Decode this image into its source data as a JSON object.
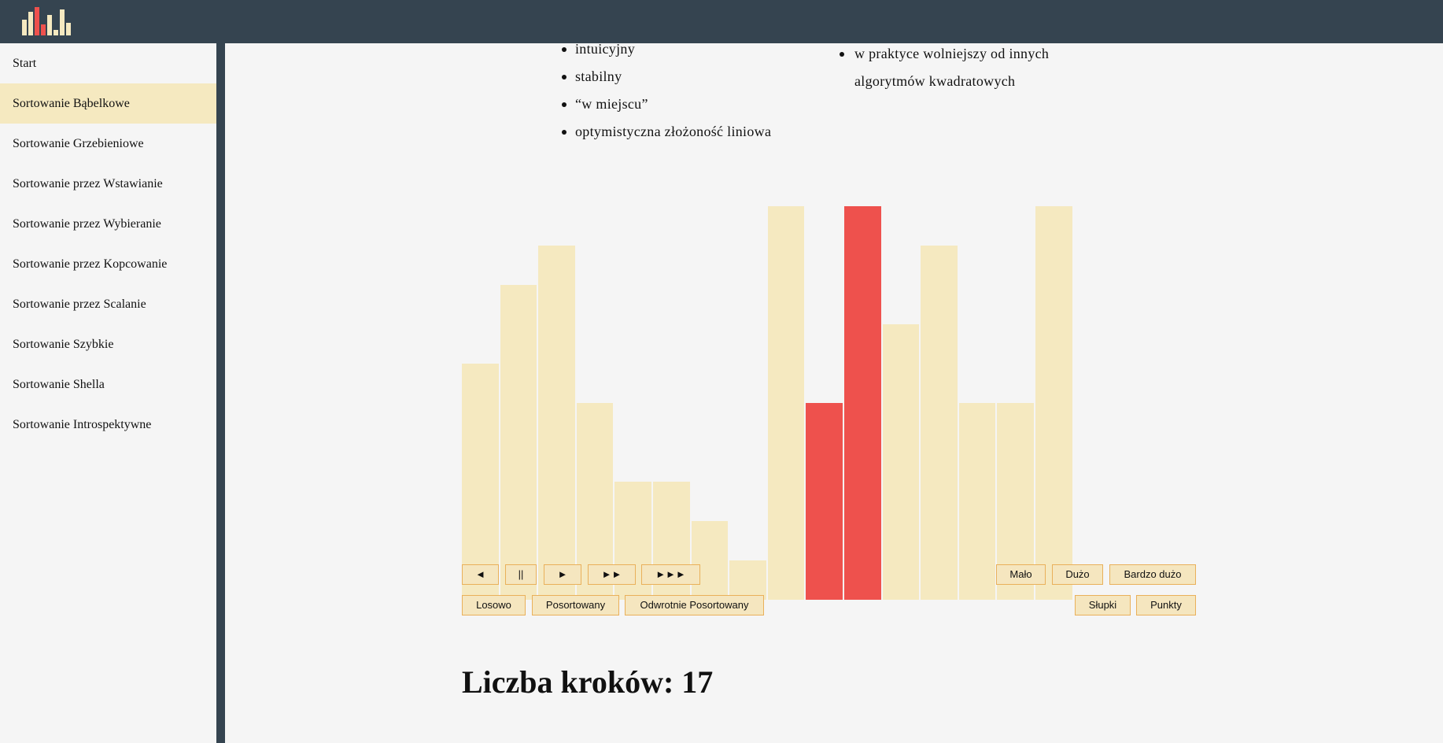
{
  "header": {
    "logo_icon": "bar-chart-logo-icon",
    "logo_colors": [
      "#f5e9c0",
      "#ee514d"
    ]
  },
  "sidebar": {
    "items": [
      {
        "label": "Start",
        "active": false
      },
      {
        "label": "Sortowanie Bąbelkowe",
        "active": true
      },
      {
        "label": "Sortowanie Grzebieniowe",
        "active": false
      },
      {
        "label": "Sortowanie przez Wstawianie",
        "active": false
      },
      {
        "label": "Sortowanie przez Wybieranie",
        "active": false
      },
      {
        "label": "Sortowanie przez Kopcowanie",
        "active": false
      },
      {
        "label": "Sortowanie przez Scalanie",
        "active": false
      },
      {
        "label": "Sortowanie Szybkie",
        "active": false
      },
      {
        "label": "Sortowanie Shella",
        "active": false
      },
      {
        "label": "Sortowanie Introspektywne",
        "active": false
      }
    ]
  },
  "content": {
    "pros": [
      "intuicyjny",
      "stabilny",
      "“w miejscu”",
      "optymistyczna złożoność liniowa"
    ],
    "cons_line1": "w praktyce wolniejszy od innych",
    "cons_line2": "algorytmów kwadratowych"
  },
  "chart_data": {
    "type": "bar",
    "values": [
      6,
      8,
      9,
      5,
      3,
      3,
      2,
      1,
      10,
      5,
      10,
      7,
      9,
      5,
      5,
      10
    ],
    "highlighted_indices": [
      9,
      10
    ],
    "ylim": [
      0,
      10
    ],
    "bar_color": "#f5e9c0",
    "highlight_color": "#ee514d"
  },
  "controls": {
    "playback": {
      "back": "◄",
      "pause": "||",
      "play": "►",
      "fast": "►►",
      "faster": "►►►"
    },
    "size": {
      "few": "Mało",
      "many": "Dużo",
      "very_many": "Bardzo dużo"
    },
    "order": {
      "random": "Losowo",
      "sorted": "Posortowany",
      "reversed": "Odwrotnie Posortowany"
    },
    "view": {
      "bars": "Słupki",
      "points": "Punkty"
    }
  },
  "steps_text": "Liczba kroków: 17"
}
